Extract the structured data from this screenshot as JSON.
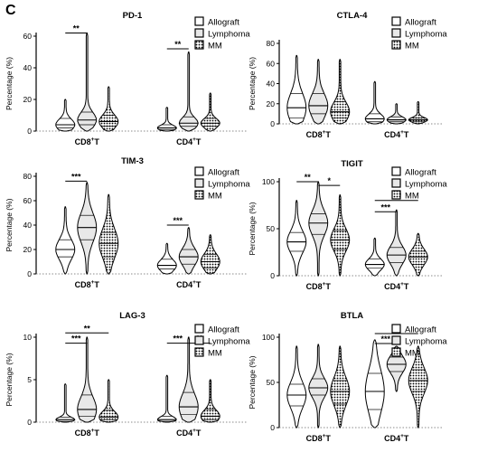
{
  "figure": {
    "panel_letter": "C"
  },
  "legend_labels": [
    "Allograft",
    "Lymphoma",
    "MM"
  ],
  "chart_data": [
    {
      "type": "violin",
      "title": "PD-1",
      "ylabel": "Percentage (%)",
      "ylim": [
        0,
        60
      ],
      "yticks": [
        0,
        20,
        40,
        60
      ],
      "categories": [
        "CD8+T",
        "CD4+T"
      ],
      "series": [
        {
          "name": "Allograft",
          "values": [
            {
              "median": 4,
              "q1": 2,
              "q3": 8,
              "min": 0,
              "max": 20
            },
            {
              "median": 2,
              "q1": 1,
              "q3": 4,
              "min": 0,
              "max": 15
            }
          ]
        },
        {
          "name": "Lymphoma",
          "values": [
            {
              "median": 7,
              "q1": 4,
              "q3": 12,
              "min": 0,
              "max": 62
            },
            {
              "median": 5,
              "q1": 3,
              "q3": 9,
              "min": 0,
              "max": 50
            }
          ]
        },
        {
          "name": "MM",
          "values": [
            {
              "median": 6,
              "q1": 3,
              "q3": 10,
              "min": 0,
              "max": 28
            },
            {
              "median": 5,
              "q1": 3,
              "q3": 8,
              "min": 0,
              "max": 24
            }
          ]
        }
      ],
      "significance": [
        {
          "category": 0,
          "from": 0,
          "to": 1,
          "y": 62,
          "label": "**"
        },
        {
          "category": 1,
          "from": 0,
          "to": 1,
          "y": 52,
          "label": "**"
        }
      ]
    },
    {
      "type": "violin",
      "title": "CTLA-4",
      "ylabel": "Percentage (%)",
      "ylim": [
        0,
        80
      ],
      "yticks": [
        0,
        20,
        40,
        60,
        80
      ],
      "categories": [
        "CD8+T",
        "CD4+T"
      ],
      "series": [
        {
          "name": "Allograft",
          "values": [
            {
              "median": 16,
              "q1": 6,
              "q3": 30,
              "min": 0,
              "max": 68
            },
            {
              "median": 5,
              "q1": 2,
              "q3": 10,
              "min": 0,
              "max": 42
            }
          ]
        },
        {
          "name": "Lymphoma",
          "values": [
            {
              "median": 18,
              "q1": 10,
              "q3": 30,
              "min": 0,
              "max": 64
            },
            {
              "median": 4,
              "q1": 2,
              "q3": 7,
              "min": 0,
              "max": 20
            }
          ]
        },
        {
          "name": "MM",
          "values": [
            {
              "median": 12,
              "q1": 6,
              "q3": 22,
              "min": 0,
              "max": 64
            },
            {
              "median": 4,
              "q1": 2,
              "q3": 6,
              "min": 0,
              "max": 22
            }
          ]
        }
      ],
      "significance": []
    },
    {
      "type": "violin",
      "title": "TIM-3",
      "ylabel": "Percentage (%)",
      "ylim": [
        0,
        80
      ],
      "yticks": [
        0,
        20,
        40,
        60,
        80
      ],
      "categories": [
        "CD8+T",
        "CD4+T"
      ],
      "series": [
        {
          "name": "Allograft",
          "values": [
            {
              "median": 20,
              "q1": 14,
              "q3": 28,
              "min": 0,
              "max": 55
            },
            {
              "median": 7,
              "q1": 4,
              "q3": 12,
              "min": 0,
              "max": 25
            }
          ]
        },
        {
          "name": "Lymphoma",
          "values": [
            {
              "median": 38,
              "q1": 28,
              "q3": 48,
              "min": 0,
              "max": 75
            },
            {
              "median": 14,
              "q1": 8,
              "q3": 20,
              "min": 0,
              "max": 38
            }
          ]
        },
        {
          "name": "MM",
          "values": [
            {
              "median": 25,
              "q1": 14,
              "q3": 34,
              "min": 0,
              "max": 65
            },
            {
              "median": 10,
              "q1": 5,
              "q3": 16,
              "min": 0,
              "max": 32
            }
          ]
        }
      ],
      "significance": [
        {
          "category": 0,
          "from": 0,
          "to": 1,
          "y": 76,
          "label": "***"
        },
        {
          "category": 1,
          "from": 0,
          "to": 1,
          "y": 40,
          "label": "***"
        }
      ]
    },
    {
      "type": "violin",
      "title": "TIGIT",
      "ylabel": "Percentage (%)",
      "ylim": [
        0,
        100
      ],
      "yticks": [
        0,
        50,
        100
      ],
      "categories": [
        "CD8+T",
        "CD4+T"
      ],
      "series": [
        {
          "name": "Allograft",
          "values": [
            {
              "median": 36,
              "q1": 26,
              "q3": 46,
              "min": 0,
              "max": 80
            },
            {
              "median": 12,
              "q1": 8,
              "q3": 18,
              "min": 0,
              "max": 40
            }
          ]
        },
        {
          "name": "Lymphoma",
          "values": [
            {
              "median": 56,
              "q1": 44,
              "q3": 66,
              "min": 0,
              "max": 100
            },
            {
              "median": 22,
              "q1": 14,
              "q3": 30,
              "min": 0,
              "max": 70
            }
          ]
        },
        {
          "name": "MM",
          "values": [
            {
              "median": 38,
              "q1": 28,
              "q3": 48,
              "min": 0,
              "max": 86
            },
            {
              "median": 20,
              "q1": 12,
              "q3": 26,
              "min": 0,
              "max": 45
            }
          ]
        }
      ],
      "significance": [
        {
          "category": 0,
          "from": 0,
          "to": 1,
          "y": 100,
          "label": "**"
        },
        {
          "category": 0,
          "from": 1,
          "to": 2,
          "y": 96,
          "label": "*"
        },
        {
          "category": 1,
          "from": 0,
          "to": 2,
          "y": 80,
          "label": "***"
        },
        {
          "category": 1,
          "from": 0,
          "to": 1,
          "y": 68,
          "label": "***"
        }
      ]
    },
    {
      "type": "violin",
      "title": "LAG-3",
      "ylabel": "Percentage (%)",
      "ylim": [
        0,
        10
      ],
      "yticks": [
        0,
        5,
        10
      ],
      "categories": [
        "CD8+T",
        "CD4+T"
      ],
      "series": [
        {
          "name": "Allograft",
          "values": [
            {
              "median": 0.3,
              "q1": 0.1,
              "q3": 0.6,
              "min": 0,
              "max": 4.5
            },
            {
              "median": 0.3,
              "q1": 0.1,
              "q3": 0.7,
              "min": 0,
              "max": 5.5
            }
          ]
        },
        {
          "name": "Lymphoma",
          "values": [
            {
              "median": 1.5,
              "q1": 0.7,
              "q3": 3.2,
              "min": 0,
              "max": 10
            },
            {
              "median": 1.8,
              "q1": 0.9,
              "q3": 3.5,
              "min": 0,
              "max": 10
            }
          ]
        },
        {
          "name": "MM",
          "values": [
            {
              "median": 0.6,
              "q1": 0.3,
              "q3": 1.4,
              "min": 0,
              "max": 5
            },
            {
              "median": 0.7,
              "q1": 0.3,
              "q3": 1.5,
              "min": 0,
              "max": 5
            }
          ]
        }
      ],
      "significance": [
        {
          "category": 0,
          "from": 0,
          "to": 2,
          "y": 10.5,
          "label": "**"
        },
        {
          "category": 0,
          "from": 0,
          "to": 1,
          "y": 9.3,
          "label": "***"
        },
        {
          "category": 1,
          "from": 0,
          "to": 1,
          "y": 9.3,
          "label": "***"
        },
        {
          "category": 1,
          "from": 1,
          "to": 2,
          "y": 9.3,
          "label": "**"
        }
      ]
    },
    {
      "type": "violin",
      "title": "BTLA",
      "ylabel": "Percentage (%)",
      "ylim": [
        0,
        100
      ],
      "yticks": [
        0,
        50,
        100
      ],
      "categories": [
        "CD8+T",
        "CD4+T"
      ],
      "series": [
        {
          "name": "Allograft",
          "values": [
            {
              "median": 36,
              "q1": 24,
              "q3": 48,
              "min": 0,
              "max": 90
            },
            {
              "median": 40,
              "q1": 20,
              "q3": 60,
              "min": 0,
              "max": 97
            }
          ]
        },
        {
          "name": "Lymphoma",
          "values": [
            {
              "median": 44,
              "q1": 36,
              "q3": 54,
              "min": 0,
              "max": 92
            },
            {
              "median": 70,
              "q1": 62,
              "q3": 78,
              "min": 40,
              "max": 90
            }
          ]
        },
        {
          "name": "MM",
          "values": [
            {
              "median": 40,
              "q1": 26,
              "q3": 52,
              "min": 0,
              "max": 90
            },
            {
              "median": 52,
              "q1": 40,
              "q3": 64,
              "min": 0,
              "max": 90
            }
          ]
        }
      ],
      "significance": [
        {
          "category": 1,
          "from": 0,
          "to": 2,
          "y": 104,
          "label": "**"
        },
        {
          "category": 1,
          "from": 0,
          "to": 1,
          "y": 93,
          "label": "***"
        }
      ]
    }
  ]
}
